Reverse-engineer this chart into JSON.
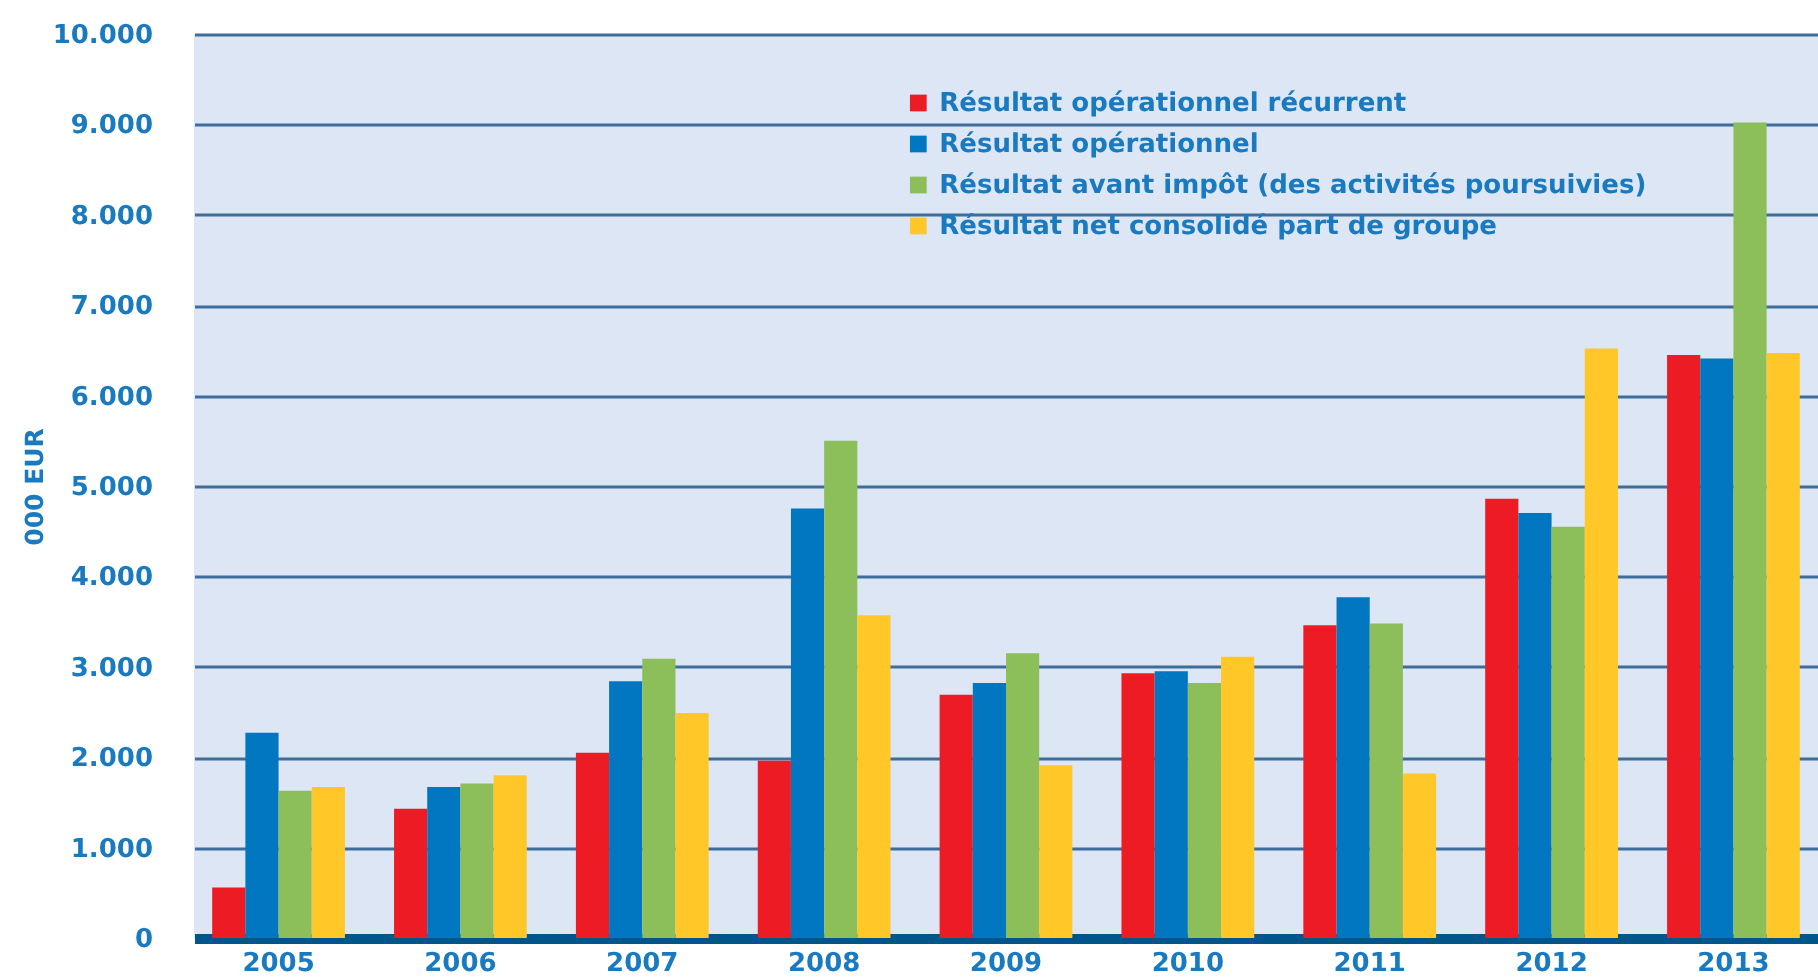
{
  "chart_data": {
    "type": "bar",
    "ylabel": "000 EUR",
    "categories": [
      "2005",
      "2006",
      "2007",
      "2008",
      "2009",
      "2010",
      "2011",
      "2012",
      "2013"
    ],
    "series": [
      {
        "name": "Résultat opérationnel récurrent",
        "color": "#ed1c24",
        "values": [
          560,
          1430,
          2050,
          1960,
          2690,
          2930,
          3460,
          4860,
          6450
        ]
      },
      {
        "name": "Résultat opérationnel",
        "color": "#0077c0",
        "values": [
          2270,
          1670,
          2840,
          4750,
          2820,
          2950,
          3770,
          4700,
          6410
        ]
      },
      {
        "name": "Résultat avant impôt (des activités poursuivies)",
        "color": "#8cbe5a",
        "values": [
          1630,
          1710,
          3090,
          5500,
          3150,
          2820,
          3480,
          4550,
          9020
        ]
      },
      {
        "name": "Résultat net consolidé part de groupe",
        "color": "#ffc828",
        "values": [
          1670,
          1800,
          2490,
          3570,
          1910,
          3110,
          1820,
          6520,
          6470
        ]
      }
    ],
    "ylim": [
      0,
      10000
    ],
    "yticks": [
      0,
      {
        "value": 1000,
        "label": "1.000"
      },
      {
        "value": 2000,
        "label": "2.000"
      },
      {
        "value": 3000,
        "label": "3.000"
      },
      {
        "value": 4000,
        "label": "4.000"
      },
      {
        "value": 5000,
        "label": "5.000"
      },
      {
        "value": 6000,
        "label": "6.000"
      },
      {
        "value": 7000,
        "label": "7.000"
      },
      {
        "value": 8000,
        "label": "8.000"
      },
      {
        "value": 9000,
        "label": "9.000"
      },
      {
        "value": 10000,
        "label": "10.000"
      }
    ],
    "grid": "y",
    "legend": "top right"
  }
}
